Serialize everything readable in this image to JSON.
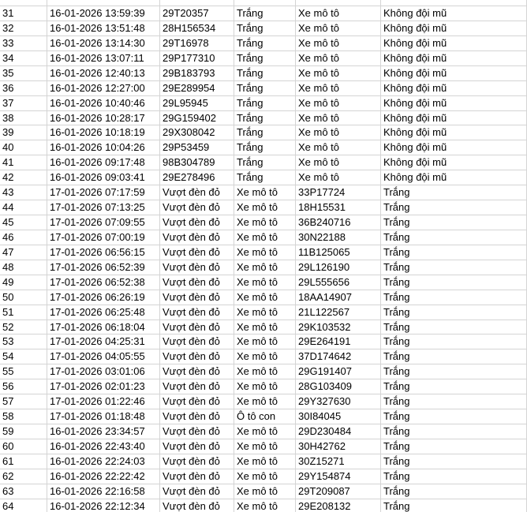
{
  "table": {
    "rows": [
      [
        "31",
        "16-01-2026 13:59:39",
        "29T20357",
        "Trắng",
        "Xe mô tô",
        "Không đội mũ"
      ],
      [
        "32",
        "16-01-2026 13:51:48",
        "28H156534",
        "Trắng",
        "Xe mô tô",
        "Không đội mũ"
      ],
      [
        "33",
        "16-01-2026 13:14:30",
        "29T16978",
        "Trắng",
        "Xe mô tô",
        "Không đội mũ"
      ],
      [
        "34",
        "16-01-2026 13:07:11",
        "29P177310",
        "Trắng",
        "Xe mô tô",
        "Không đội mũ"
      ],
      [
        "35",
        "16-01-2026 12:40:13",
        "29B183793",
        "Trắng",
        "Xe mô tô",
        "Không đội mũ"
      ],
      [
        "36",
        "16-01-2026 12:27:00",
        "29E289954",
        "Trắng",
        "Xe mô tô",
        "Không đội mũ"
      ],
      [
        "37",
        "16-01-2026 10:40:46",
        "29L95945",
        "Trắng",
        "Xe mô tô",
        "Không đội mũ"
      ],
      [
        "38",
        "16-01-2026 10:28:17",
        "29G159402",
        "Trắng",
        "Xe mô tô",
        "Không đội mũ"
      ],
      [
        "39",
        "16-01-2026 10:18:19",
        "29X308042",
        "Trắng",
        "Xe mô tô",
        "Không đội mũ"
      ],
      [
        "40",
        "16-01-2026 10:04:26",
        "29P53459",
        "Trắng",
        "Xe mô tô",
        "Không đội mũ"
      ],
      [
        "41",
        "16-01-2026 09:17:48",
        "98B304789",
        "Trắng",
        "Xe mô tô",
        "Không đội mũ"
      ],
      [
        "42",
        "16-01-2026 09:03:41",
        "29E278496",
        "Trắng",
        "Xe mô tô",
        "Không đội mũ"
      ],
      [
        "43",
        "17-01-2026 07:17:59",
        "Vượt đèn đỏ",
        "Xe mô tô",
        "33P17724",
        "Trắng"
      ],
      [
        "44",
        "17-01-2026 07:13:25",
        "Vượt đèn đỏ",
        "Xe mô tô",
        "18H15531",
        "Trắng"
      ],
      [
        "45",
        "17-01-2026 07:09:55",
        "Vượt đèn đỏ",
        "Xe mô tô",
        "36B240716",
        "Trắng"
      ],
      [
        "46",
        "17-01-2026 07:00:19",
        "Vượt đèn đỏ",
        "Xe mô tô",
        "30N22188",
        "Trắng"
      ],
      [
        "47",
        "17-01-2026 06:56:15",
        "Vượt đèn đỏ",
        "Xe mô tô",
        "11B125065",
        "Trắng"
      ],
      [
        "48",
        "17-01-2026 06:52:39",
        "Vượt đèn đỏ",
        "Xe mô tô",
        "29L126190",
        "Trắng"
      ],
      [
        "49",
        "17-01-2026 06:52:38",
        "Vượt đèn đỏ",
        "Xe mô tô",
        "29L555656",
        "Trắng"
      ],
      [
        "50",
        "17-01-2026 06:26:19",
        "Vượt đèn đỏ",
        "Xe mô tô",
        "18AA14907",
        "Trắng"
      ],
      [
        "51",
        "17-01-2026 06:25:48",
        "Vượt đèn đỏ",
        "Xe mô tô",
        "21L122567",
        "Trắng"
      ],
      [
        "52",
        "17-01-2026 06:18:04",
        "Vượt đèn đỏ",
        "Xe mô tô",
        "29K103532",
        "Trắng"
      ],
      [
        "53",
        "17-01-2026 04:25:31",
        "Vượt đèn đỏ",
        "Xe mô tô",
        "29E264191",
        "Trắng"
      ],
      [
        "54",
        "17-01-2026 04:05:55",
        "Vượt đèn đỏ",
        "Xe mô tô",
        "37D174642",
        "Trắng"
      ],
      [
        "55",
        "17-01-2026 03:01:06",
        "Vượt đèn đỏ",
        "Xe mô tô",
        "29G191407",
        "Trắng"
      ],
      [
        "56",
        "17-01-2026 02:01:23",
        "Vượt đèn đỏ",
        "Xe mô tô",
        "28G103409",
        "Trắng"
      ],
      [
        "57",
        "17-01-2026 01:22:46",
        "Vượt đèn đỏ",
        "Xe mô tô",
        "29Y327630",
        "Trắng"
      ],
      [
        "58",
        "17-01-2026 01:18:48",
        "Vượt đèn đỏ",
        "Ô tô con",
        "30I84045",
        "Trắng"
      ],
      [
        "59",
        "16-01-2026 23:34:57",
        "Vượt đèn đỏ",
        "Xe mô tô",
        "29D230484",
        "Trắng"
      ],
      [
        "60",
        "16-01-2026 22:43:40",
        "Vượt đèn đỏ",
        "Xe mô tô",
        "30H42762",
        "Trắng"
      ],
      [
        "61",
        "16-01-2026 22:24:03",
        "Vượt đèn đỏ",
        "Xe mô tô",
        "30Z15271",
        "Trắng"
      ],
      [
        "62",
        "16-01-2026 22:22:42",
        "Vượt đèn đỏ",
        "Xe mô tô",
        "29Y154874",
        "Trắng"
      ],
      [
        "63",
        "16-01-2026 22:16:58",
        "Vượt đèn đỏ",
        "Xe mô tô",
        "29T209087",
        "Trắng"
      ],
      [
        "64",
        "16-01-2026 22:12:34",
        "Vượt đèn đỏ",
        "Xe mô tô",
        "29E208132",
        "Trắng"
      ]
    ]
  }
}
